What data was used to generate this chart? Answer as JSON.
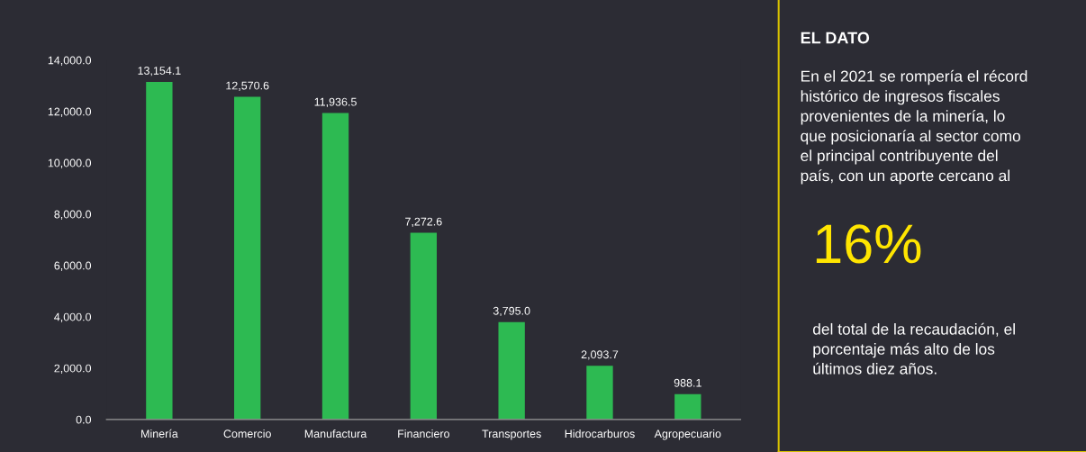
{
  "chart_data": [
    {
      "type": "bar",
      "categories": [
        "Minería",
        "Comercio",
        "Manufactura",
        "Financiero",
        "Transportes",
        "Hidrocarburos",
        "Agropecuario"
      ],
      "values": [
        13154.1,
        12570.6,
        11936.5,
        7272.6,
        3795.0,
        2093.7,
        988.1
      ],
      "value_labels": [
        "13,154.1",
        "12,570.6",
        "11,936.5",
        "7,272.6",
        "3,795.0",
        "2,093.7",
        "988.1"
      ],
      "color": "#2dba52",
      "ylim": [
        0,
        14000
      ],
      "yticks": [
        {
          "value": 0,
          "label": "0.0"
        },
        {
          "value": 2000,
          "label": "2,000.0"
        },
        {
          "value": 4000,
          "label": "4,000.0"
        },
        {
          "value": 6000,
          "label": "6,000.0"
        },
        {
          "value": 8000,
          "label": "8,000.0"
        },
        {
          "value": 10000,
          "label": "10,000.0"
        },
        {
          "value": 12000,
          "label": "12,000.0"
        },
        {
          "value": 14000,
          "label": "14,000.0"
        }
      ],
      "grid": false,
      "legend": false
    },
    {
      "type": "other",
      "title": "EL DATO",
      "annotations": [
        "En el 2021 se rompería el récord\nhistórico de ingresos fiscales\nprovenientes de la minería, lo\nque posicionaría al sector como\nel principal contribuyente del\npaís, con un aporte cercano al",
        "16%",
        "del total de la recaudación, el\nporcentaje más alto de los\núltimos diez años."
      ]
    }
  ]
}
